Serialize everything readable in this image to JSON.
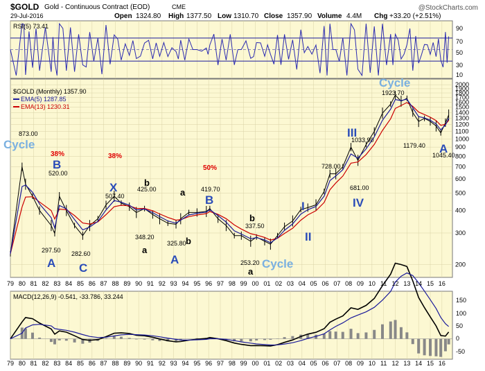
{
  "header": {
    "symbol": "$GOLD",
    "name": "Gold - Continuous Contract (EOD)",
    "exchange": "CME",
    "date": "29-Jul-2016",
    "open_label": "Open",
    "open": "1324.80",
    "high_label": "High",
    "high": "1377.50",
    "low_label": "Low",
    "low": "1310.70",
    "close_label": "Close",
    "close": "1357.90",
    "volume_label": "Volume",
    "volume": "4.4M",
    "chg_label": "Chg",
    "chg": "+33.20 (+2.51%)",
    "watermark": "@StockCharts.com"
  },
  "rsi_panel": {
    "legend": "RSI(5) 73.41",
    "tick_labels": [
      "90",
      "70",
      "50",
      "30",
      "10"
    ]
  },
  "price_panel": {
    "legend_main": "$GOLD (Monthly) 1357.90",
    "legend_ema5": "EMA(5) 1287.85",
    "legend_ema13": "EMA(13) 1230.31",
    "colors": {
      "price": "#000000",
      "ema5": "#1a1a9a",
      "ema13": "#cc0000",
      "wave": "#2a4cb8",
      "cycle": "#7ab0e0",
      "fib": "#e00000"
    }
  },
  "macd_panel": {
    "legend": "MACD(12,26,9) -0.541, -33.786, 33.244",
    "tick_labels": [
      "150",
      "100",
      "50",
      "0",
      "-50"
    ]
  },
  "x_axis": {
    "labels": [
      "79",
      "80",
      "81",
      "82",
      "83",
      "84",
      "85",
      "86",
      "87",
      "88",
      "89",
      "90",
      "91",
      "92",
      "93",
      "94",
      "95",
      "96",
      "97",
      "98",
      "99",
      "00",
      "01",
      "02",
      "03",
      "04",
      "05",
      "06",
      "07",
      "08",
      "09",
      "10",
      "11",
      "12",
      "13",
      "14",
      "15",
      "16"
    ]
  },
  "chart_data": {
    "type": "line",
    "title": "$GOLD Gold - Continuous Contract (EOD) CME",
    "xlabel": "",
    "ylabel": "",
    "y_scale": "log",
    "y_ticks": [
      200,
      300,
      400,
      500,
      600,
      700,
      800,
      900,
      1000,
      1100,
      1200,
      1300,
      1400,
      1500,
      1600,
      1700,
      1800,
      1900,
      2000
    ],
    "series": [
      {
        "name": "$GOLD (Monthly)",
        "x": [
          1979.0,
          1980.0,
          1980.3,
          1980.9,
          1981.5,
          1982.5,
          1982.8,
          1983.2,
          1983.8,
          1984.5,
          1985.2,
          1985.8,
          1986.5,
          1987.2,
          1987.9,
          1988.5,
          1989.2,
          1989.8,
          1990.5,
          1991.2,
          1991.8,
          1992.5,
          1993.2,
          1993.6,
          1994.3,
          1995.0,
          1995.8,
          1996.1,
          1996.8,
          1997.5,
          1998.2,
          1998.8,
          1999.6,
          2000.1,
          2000.8,
          2001.3,
          2001.9,
          2002.5,
          2003.2,
          2003.9,
          2004.5,
          2005.2,
          2005.9,
          2006.4,
          2006.9,
          2007.5,
          2008.2,
          2008.8,
          2009.5,
          2010.2,
          2010.9,
          2011.6,
          2012.0,
          2012.5,
          2013.0,
          2013.5,
          2014.0,
          2014.5,
          2015.0,
          2015.5,
          2015.9,
          2016.3,
          2016.58
        ],
        "values": [
          230,
          700,
          560,
          480,
          400,
          330,
          297.5,
          480,
          400,
          330,
          290,
          330,
          360,
          430,
          480,
          440,
          420,
          390,
          410,
          380,
          360,
          340,
          335,
          360,
          390,
          390,
          395,
          410,
          360,
          330,
          290,
          290,
          270,
          285,
          270,
          260,
          290,
          325,
          350,
          405,
          415,
          430,
          510,
          640,
          640,
          700,
          900,
          760,
          930,
          1100,
          1390,
          1560,
          1750,
          1620,
          1680,
          1400,
          1250,
          1300,
          1250,
          1180,
          1080,
          1230,
          1357.9
        ]
      },
      {
        "name": "EMA(5)",
        "x": [],
        "values": []
      },
      {
        "name": "EMA(13)",
        "x": [],
        "values": []
      }
    ],
    "price_annotations": [
      {
        "text": "873.00",
        "x": 1980.1
      },
      {
        "text": "297.50",
        "x": 1982.5
      },
      {
        "text": "520.00",
        "x": 1983.2
      },
      {
        "text": "282.60",
        "x": 1985.2
      },
      {
        "text": "507.40",
        "x": 1987.9
      },
      {
        "text": "425.00",
        "x": 1989.9
      },
      {
        "text": "348.20",
        "x": 1990.6
      },
      {
        "text": "325.80",
        "x": 1993.2
      },
      {
        "text": "419.70",
        "x": 1996.1
      },
      {
        "text": "337.50",
        "x": 1999.6
      },
      {
        "text": "253.20",
        "x": 1999.4
      },
      {
        "text": "728.00",
        "x": 2006.4
      },
      {
        "text": "1033.90",
        "x": 2008.2
      },
      {
        "text": "681.00",
        "x": 2008.8
      },
      {
        "text": "1923.70",
        "x": 2011.7
      },
      {
        "text": "1179.40",
        "x": 2013.5
      },
      {
        "text": "1045.40",
        "x": 2015.9
      }
    ],
    "wave_labels": [
      {
        "text": "Cycle",
        "kind": "cycle"
      },
      {
        "text": "38%",
        "kind": "fib"
      },
      {
        "text": "B",
        "kind": "wave"
      },
      {
        "text": "A",
        "kind": "wave"
      },
      {
        "text": "C",
        "kind": "wave"
      },
      {
        "text": "38%",
        "kind": "fib"
      },
      {
        "text": "X",
        "kind": "wave"
      },
      {
        "text": "b",
        "kind": "minor"
      },
      {
        "text": "a",
        "kind": "minor"
      },
      {
        "text": "A",
        "kind": "wave"
      },
      {
        "text": "a",
        "kind": "minor"
      },
      {
        "text": "b",
        "kind": "minor"
      },
      {
        "text": "50%",
        "kind": "fib"
      },
      {
        "text": "B",
        "kind": "wave"
      },
      {
        "text": "b",
        "kind": "minor"
      },
      {
        "text": "a",
        "kind": "minor"
      },
      {
        "text": "Cycle",
        "kind": "cycle"
      },
      {
        "text": "I",
        "kind": "wave"
      },
      {
        "text": "II",
        "kind": "wave"
      },
      {
        "text": "III",
        "kind": "wave"
      },
      {
        "text": "IV",
        "kind": "wave"
      },
      {
        "text": "Cycle",
        "kind": "cycle"
      },
      {
        "text": "A",
        "kind": "wave"
      }
    ],
    "rsi": {
      "name": "RSI(5)",
      "ylim": [
        0,
        100
      ],
      "levels": [
        30,
        70
      ]
    },
    "macd": {
      "name": "MACD(12,26,9)",
      "ylim": [
        -75,
        175
      ]
    },
    "xlim": [
      1979,
      2016.9
    ]
  }
}
